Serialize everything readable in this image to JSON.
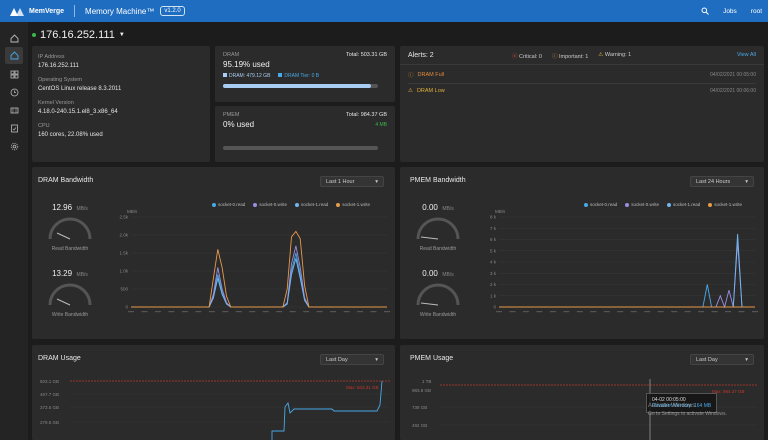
{
  "topbar": {
    "brand": "MemVerge",
    "app_title": "Memory Machine™",
    "version": "v1.2.0",
    "jobs": "Jobs",
    "user": "root"
  },
  "host": {
    "ip": "176.16.252.111"
  },
  "system": {
    "ip_label": "IP Address",
    "ip_value": "176.16.252.111",
    "os_label": "Operating System",
    "os_value": "CentOS Linux release 8.3.2011",
    "kernel_label": "Kernel Version",
    "kernel_value": "4.18.0-240.15.1.el8_3.x86_64",
    "cpu_label": "CPU",
    "cpu_value": "160 cores, 22.08% used"
  },
  "dram": {
    "label": "DRAM",
    "total": "Total: 503.31 GB",
    "used_pct": "95.19% used",
    "used_fraction": 0.9519,
    "dram_label": "DRAM: 479.12 GB",
    "tier_label": "DRAM Tier: 0 B"
  },
  "pmem": {
    "label": "PMEM",
    "total": "Total: 984.37 GB",
    "used_pct": "0% used",
    "used_fraction": 0.0,
    "used_value": "4 MB"
  },
  "alerts": {
    "title": "Alerts: 2",
    "critical": "Critical: 0",
    "important": "Important: 1",
    "warning": "Warning: 1",
    "view_all": "View All",
    "items": [
      {
        "name": "DRAM Full",
        "time": "04/02/2021 00:05:00"
      },
      {
        "name": "DRAM Low",
        "time": "04/02/2021 00:06:00"
      }
    ]
  },
  "dram_bw": {
    "title": "DRAM Bandwidth",
    "range": "Last 1 Hour",
    "read_value": "12.96",
    "read_unit": "MB/s",
    "read_label": "Read Bandwidth",
    "write_value": "13.29",
    "write_unit": "MB/s",
    "write_label": "Write Bandwidth",
    "legend": [
      "socket-0.read",
      "socket-0.write",
      "socket-1.read",
      "socket-1.write"
    ],
    "yunit": "MB/s"
  },
  "pmem_bw": {
    "title": "PMEM Bandwidth",
    "range": "Last 24 Hours",
    "read_value": "0.00",
    "read_unit": "MB/s",
    "read_label": "Read Bandwidth",
    "write_value": "0.00",
    "write_unit": "MB/s",
    "write_label": "Write Bandwidth",
    "legend": [
      "socket-0.read",
      "socket-0.write",
      "socket-1.read",
      "socket-1.write"
    ],
    "yunit": "MB/s"
  },
  "dram_usage": {
    "title": "DRAM Usage",
    "range": "Last Day",
    "max_label": "Max: 503.31 GB",
    "yticks": [
      "503.1 GB",
      "467.7 GB",
      "373.5 GB",
      "279.5 GB"
    ]
  },
  "pmem_usage": {
    "title": "PMEM Usage",
    "range": "Last Day",
    "max_label": "Max: 984.37 GB",
    "yticks": [
      "1 TB",
      "983.8 GB",
      "738 GB",
      "492 GB"
    ],
    "tooltip_time": "04-02 00:05:00",
    "tooltip_value": "Resident Memory: 164 MB"
  },
  "watermark": {
    "line1": "Activate Windows",
    "line2": "Go to Settings to activate Windows."
  },
  "chart_data": [
    {
      "type": "line",
      "title": "DRAM Bandwidth",
      "ylabel": "MB/s",
      "yticks": [
        "2.5k",
        "2.0k",
        "1.5k",
        "1.0k",
        "500",
        "0"
      ],
      "ylim": [
        0,
        2500
      ],
      "series": [
        {
          "name": "socket-0.read",
          "color": "#4aa8e8",
          "values": [
            0,
            0,
            0,
            0,
            0,
            0,
            0,
            0,
            0,
            0,
            0,
            0,
            0,
            0,
            0,
            0,
            0,
            0,
            0,
            300,
            900,
            400,
            100,
            0,
            0,
            0,
            0,
            0,
            0,
            0,
            0,
            0,
            0,
            0,
            0,
            0,
            100,
            1000,
            1500,
            900,
            200,
            0,
            0,
            0,
            0,
            0,
            0,
            0,
            0,
            0,
            0,
            0,
            0,
            0,
            0,
            0,
            0,
            0,
            0,
            0
          ]
        },
        {
          "name": "socket-0.write",
          "color": "#9a8ee0",
          "values": [
            0,
            0,
            0,
            0,
            0,
            0,
            0,
            0,
            0,
            0,
            0,
            0,
            0,
            0,
            0,
            0,
            0,
            0,
            0,
            350,
            1100,
            500,
            120,
            0,
            0,
            0,
            0,
            0,
            0,
            0,
            0,
            0,
            0,
            0,
            0,
            0,
            120,
            1200,
            1700,
            1100,
            250,
            0,
            0,
            0,
            0,
            0,
            0,
            0,
            0,
            0,
            0,
            0,
            0,
            0,
            0,
            0,
            0,
            0,
            0,
            0
          ]
        },
        {
          "name": "socket-1.read",
          "color": "#6fb6f0",
          "values": [
            0,
            0,
            0,
            0,
            0,
            0,
            0,
            0,
            0,
            0,
            0,
            0,
            0,
            0,
            0,
            0,
            0,
            0,
            0,
            250,
            800,
            350,
            80,
            0,
            0,
            0,
            0,
            0,
            0,
            0,
            0,
            0,
            0,
            0,
            0,
            0,
            80,
            900,
            1350,
            800,
            180,
            0,
            0,
            0,
            0,
            0,
            0,
            0,
            0,
            0,
            0,
            0,
            0,
            0,
            0,
            0,
            0,
            0,
            0,
            0
          ]
        },
        {
          "name": "socket-1.write",
          "color": "#e89a4a",
          "values": [
            0,
            0,
            0,
            0,
            0,
            0,
            0,
            0,
            0,
            0,
            0,
            0,
            0,
            0,
            0,
            0,
            0,
            0,
            0,
            800,
            1600,
            1100,
            300,
            0,
            0,
            0,
            0,
            0,
            0,
            0,
            0,
            0,
            0,
            0,
            0,
            0,
            500,
            1950,
            2100,
            1900,
            600,
            0,
            0,
            0,
            0,
            0,
            0,
            0,
            0,
            0,
            0,
            0,
            0,
            0,
            0,
            0,
            0,
            0,
            0,
            0
          ]
        }
      ]
    },
    {
      "type": "line",
      "title": "PMEM Bandwidth",
      "ylabel": "MB/s",
      "yticks": [
        "8 k",
        "7 k",
        "6 k",
        "5 k",
        "4 k",
        "3 k",
        "2 k",
        "1 k",
        "0"
      ],
      "ylim": [
        0,
        8000
      ],
      "series": [
        {
          "name": "socket-0.read",
          "color": "#4aa8e8",
          "values": [
            0,
            0,
            0,
            0,
            0,
            0,
            0,
            0,
            0,
            0,
            0,
            0,
            0,
            0,
            0,
            0,
            0,
            0,
            0,
            0,
            0,
            0,
            0,
            0,
            0,
            0,
            0,
            0,
            0,
            0,
            0,
            0,
            0,
            0,
            0,
            0,
            0,
            0,
            0,
            0,
            0,
            0,
            0,
            0,
            0,
            0,
            0,
            0,
            2000,
            0,
            0,
            0,
            0,
            0,
            0,
            0,
            0,
            0,
            0,
            0
          ]
        },
        {
          "name": "socket-0.write",
          "color": "#9a8ee0",
          "values": [
            0,
            0,
            0,
            0,
            0,
            0,
            0,
            0,
            0,
            0,
            0,
            0,
            0,
            0,
            0,
            0,
            0,
            0,
            0,
            0,
            0,
            0,
            0,
            0,
            0,
            0,
            0,
            0,
            0,
            0,
            0,
            0,
            0,
            0,
            0,
            0,
            0,
            0,
            0,
            0,
            0,
            0,
            0,
            0,
            0,
            0,
            0,
            0,
            0,
            0,
            0,
            1000,
            0,
            1500,
            0,
            5800,
            0,
            0,
            0,
            0
          ]
        },
        {
          "name": "socket-1.read",
          "color": "#6fb6f0",
          "values": [
            0,
            0,
            0,
            0,
            0,
            0,
            0,
            0,
            0,
            0,
            0,
            0,
            0,
            0,
            0,
            0,
            0,
            0,
            0,
            0,
            0,
            0,
            0,
            0,
            0,
            0,
            0,
            0,
            0,
            0,
            0,
            0,
            0,
            0,
            0,
            0,
            0,
            0,
            0,
            0,
            0,
            0,
            0,
            0,
            0,
            0,
            0,
            0,
            0,
            0,
            0,
            0,
            0,
            0,
            0,
            6500,
            0,
            0,
            0,
            0
          ]
        },
        {
          "name": "socket-1.write",
          "color": "#e89a4a",
          "values": [
            0,
            0,
            0,
            0,
            0,
            0,
            0,
            0,
            0,
            0,
            0,
            0,
            0,
            0,
            0,
            0,
            0,
            0,
            0,
            0,
            0,
            0,
            0,
            0,
            0,
            0,
            0,
            0,
            0,
            0,
            0,
            0,
            0,
            0,
            0,
            0,
            0,
            0,
            0,
            0,
            0,
            0,
            0,
            0,
            0,
            0,
            0,
            0,
            0,
            0,
            0,
            0,
            0,
            0,
            0,
            0,
            0,
            0,
            0,
            0
          ]
        }
      ]
    }
  ]
}
